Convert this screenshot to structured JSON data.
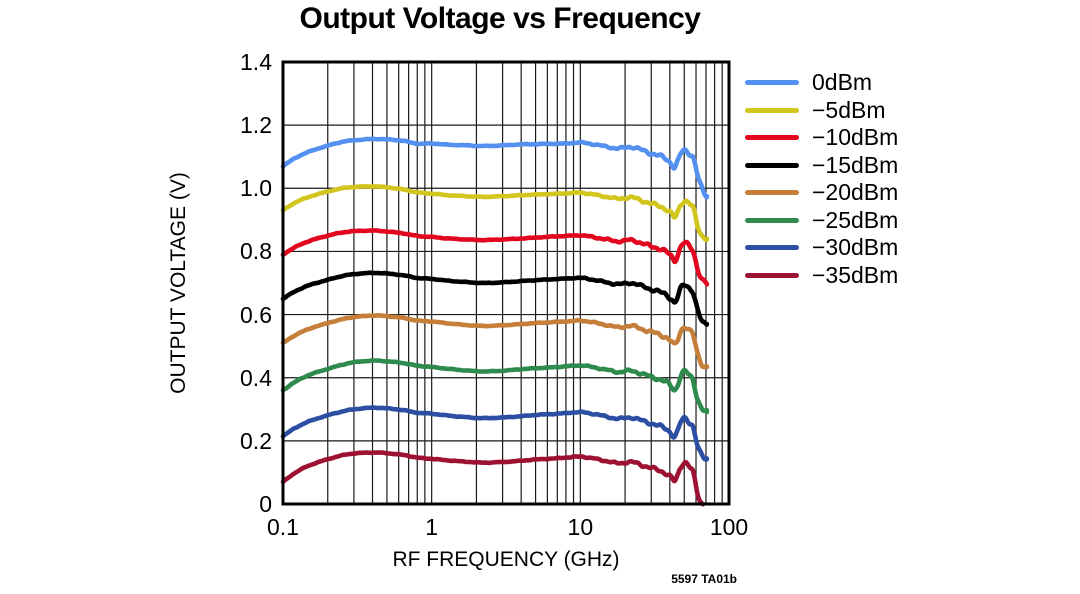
{
  "title": "Output Voltage vs Frequency",
  "footnote": "5597 TA01b",
  "colors": {
    "background": "#ffffff",
    "grid": "#1a1a1a",
    "frame": "#000000",
    "text": "#000000"
  },
  "axes": {
    "x": {
      "label": "RF FREQUENCY (GHz)",
      "scale": "log",
      "min": 0.1,
      "max": 100,
      "ticks": [
        {
          "label": "0.1",
          "f": 0.1
        },
        {
          "label": "1",
          "f": 1
        },
        {
          "label": "10",
          "f": 10
        },
        {
          "label": "100",
          "f": 100
        }
      ]
    },
    "y": {
      "label": "OUTPUT VOLTAGE (V)",
      "min": 0,
      "max": 1.4,
      "ticks": [
        {
          "label": "1.4",
          "v": 1.4
        },
        {
          "label": "1.2",
          "v": 1.2
        },
        {
          "label": "1.0",
          "v": 1.0
        },
        {
          "label": "0.8",
          "v": 0.8
        },
        {
          "label": "0.6",
          "v": 0.6
        },
        {
          "label": "0.4",
          "v": 0.4
        },
        {
          "label": "0.2",
          "v": 0.2
        },
        {
          "label": "0",
          "v": 0
        }
      ]
    }
  },
  "chart_data": {
    "type": "line",
    "title": "Output Voltage vs Frequency",
    "xlabel": "RF FREQUENCY (GHz)",
    "ylabel": "OUTPUT VOLTAGE (V)",
    "x_scale": "log",
    "xlim": [
      0.1,
      100
    ],
    "ylim": [
      0,
      1.4
    ],
    "grid": true,
    "legend_position": "right",
    "x_ghz": [
      0.1,
      0.12,
      0.15,
      0.2,
      0.25,
      0.3,
      0.4,
      0.5,
      0.65,
      0.8,
      1,
      1.3,
      1.7,
      2.2,
      3,
      4,
      5,
      6.5,
      8,
      10,
      12,
      15,
      18,
      22,
      26,
      30,
      34,
      38,
      41,
      43,
      45,
      47,
      49,
      51,
      53,
      55,
      57,
      59,
      61,
      63,
      65,
      67,
      69,
      71
    ],
    "series": [
      {
        "name": "0dBm",
        "color": "#5390F0",
        "values": [
          1.07,
          1.095,
          1.116,
          1.135,
          1.147,
          1.152,
          1.156,
          1.155,
          1.15,
          1.141,
          1.142,
          1.138,
          1.136,
          1.134,
          1.136,
          1.139,
          1.14,
          1.141,
          1.142,
          1.145,
          1.14,
          1.132,
          1.126,
          1.131,
          1.121,
          1.11,
          1.103,
          1.092,
          1.078,
          1.066,
          1.082,
          1.106,
          1.118,
          1.12,
          1.115,
          1.108,
          1.1,
          1.078,
          1.048,
          1.022,
          1.005,
          0.992,
          0.982,
          0.975
        ]
      },
      {
        "name": "−5dBm",
        "color": "#D2C51E",
        "values": [
          0.93,
          0.954,
          0.973,
          0.99,
          1.0,
          1.004,
          1.006,
          1.003,
          0.996,
          0.987,
          0.983,
          0.978,
          0.975,
          0.973,
          0.975,
          0.978,
          0.98,
          0.982,
          0.984,
          0.986,
          0.981,
          0.973,
          0.967,
          0.971,
          0.961,
          0.951,
          0.944,
          0.933,
          0.919,
          0.907,
          0.922,
          0.946,
          0.958,
          0.96,
          0.955,
          0.948,
          0.94,
          0.916,
          0.886,
          0.868,
          0.855,
          0.847,
          0.843,
          0.84
        ]
      },
      {
        "name": "−10dBm",
        "color": "#E2071F",
        "values": [
          0.79,
          0.813,
          0.833,
          0.85,
          0.86,
          0.864,
          0.866,
          0.863,
          0.857,
          0.849,
          0.846,
          0.841,
          0.838,
          0.836,
          0.838,
          0.841,
          0.844,
          0.847,
          0.849,
          0.851,
          0.846,
          0.838,
          0.832,
          0.836,
          0.826,
          0.816,
          0.809,
          0.798,
          0.784,
          0.772,
          0.787,
          0.811,
          0.824,
          0.826,
          0.82,
          0.813,
          0.805,
          0.781,
          0.751,
          0.731,
          0.716,
          0.706,
          0.7,
          0.696
        ]
      },
      {
        "name": "−15dBm",
        "color": "#000000",
        "values": [
          0.65,
          0.673,
          0.693,
          0.71,
          0.722,
          0.728,
          0.732,
          0.73,
          0.724,
          0.716,
          0.713,
          0.707,
          0.703,
          0.7,
          0.702,
          0.706,
          0.709,
          0.712,
          0.714,
          0.716,
          0.711,
          0.702,
          0.696,
          0.7,
          0.69,
          0.68,
          0.672,
          0.662,
          0.649,
          0.638,
          0.653,
          0.678,
          0.692,
          0.695,
          0.689,
          0.681,
          0.673,
          0.648,
          0.618,
          0.598,
          0.584,
          0.576,
          0.572,
          0.57
        ]
      },
      {
        "name": "−20dBm",
        "color": "#C57F3B",
        "values": [
          0.51,
          0.534,
          0.555,
          0.573,
          0.585,
          0.592,
          0.597,
          0.595,
          0.589,
          0.581,
          0.578,
          0.572,
          0.567,
          0.564,
          0.566,
          0.57,
          0.573,
          0.576,
          0.578,
          0.581,
          0.576,
          0.567,
          0.56,
          0.564,
          0.554,
          0.545,
          0.537,
          0.527,
          0.514,
          0.503,
          0.518,
          0.544,
          0.558,
          0.561,
          0.554,
          0.546,
          0.538,
          0.512,
          0.482,
          0.462,
          0.448,
          0.44,
          0.436,
          0.434
        ]
      },
      {
        "name": "−25dBm",
        "color": "#2F8B4D",
        "values": [
          0.36,
          0.386,
          0.409,
          0.428,
          0.441,
          0.449,
          0.454,
          0.452,
          0.446,
          0.438,
          0.434,
          0.428,
          0.423,
          0.42,
          0.422,
          0.427,
          0.43,
          0.433,
          0.436,
          0.439,
          0.434,
          0.425,
          0.418,
          0.422,
          0.412,
          0.403,
          0.395,
          0.385,
          0.372,
          0.361,
          0.376,
          0.402,
          0.416,
          0.419,
          0.412,
          0.404,
          0.395,
          0.369,
          0.339,
          0.319,
          0.305,
          0.297,
          0.293,
          0.291
        ]
      },
      {
        "name": "−30dBm",
        "color": "#2C4FA3",
        "values": [
          0.215,
          0.24,
          0.262,
          0.281,
          0.293,
          0.3,
          0.305,
          0.303,
          0.297,
          0.289,
          0.286,
          0.28,
          0.275,
          0.272,
          0.274,
          0.278,
          0.282,
          0.285,
          0.288,
          0.291,
          0.286,
          0.277,
          0.27,
          0.274,
          0.264,
          0.255,
          0.247,
          0.237,
          0.224,
          0.213,
          0.228,
          0.255,
          0.269,
          0.272,
          0.265,
          0.256,
          0.246,
          0.219,
          0.189,
          0.169,
          0.156,
          0.149,
          0.146,
          0.144
        ]
      },
      {
        "name": "−35dBm",
        "color": "#9D1233",
        "values": [
          0.07,
          0.098,
          0.122,
          0.142,
          0.154,
          0.16,
          0.163,
          0.161,
          0.155,
          0.147,
          0.143,
          0.138,
          0.134,
          0.131,
          0.133,
          0.137,
          0.141,
          0.144,
          0.147,
          0.15,
          0.145,
          0.136,
          0.129,
          0.133,
          0.123,
          0.114,
          0.106,
          0.096,
          0.083,
          0.072,
          0.088,
          0.115,
          0.129,
          0.132,
          0.124,
          0.114,
          0.102,
          0.072,
          0.04,
          0.018,
          0.005,
          0.0,
          null,
          null
        ]
      }
    ]
  }
}
